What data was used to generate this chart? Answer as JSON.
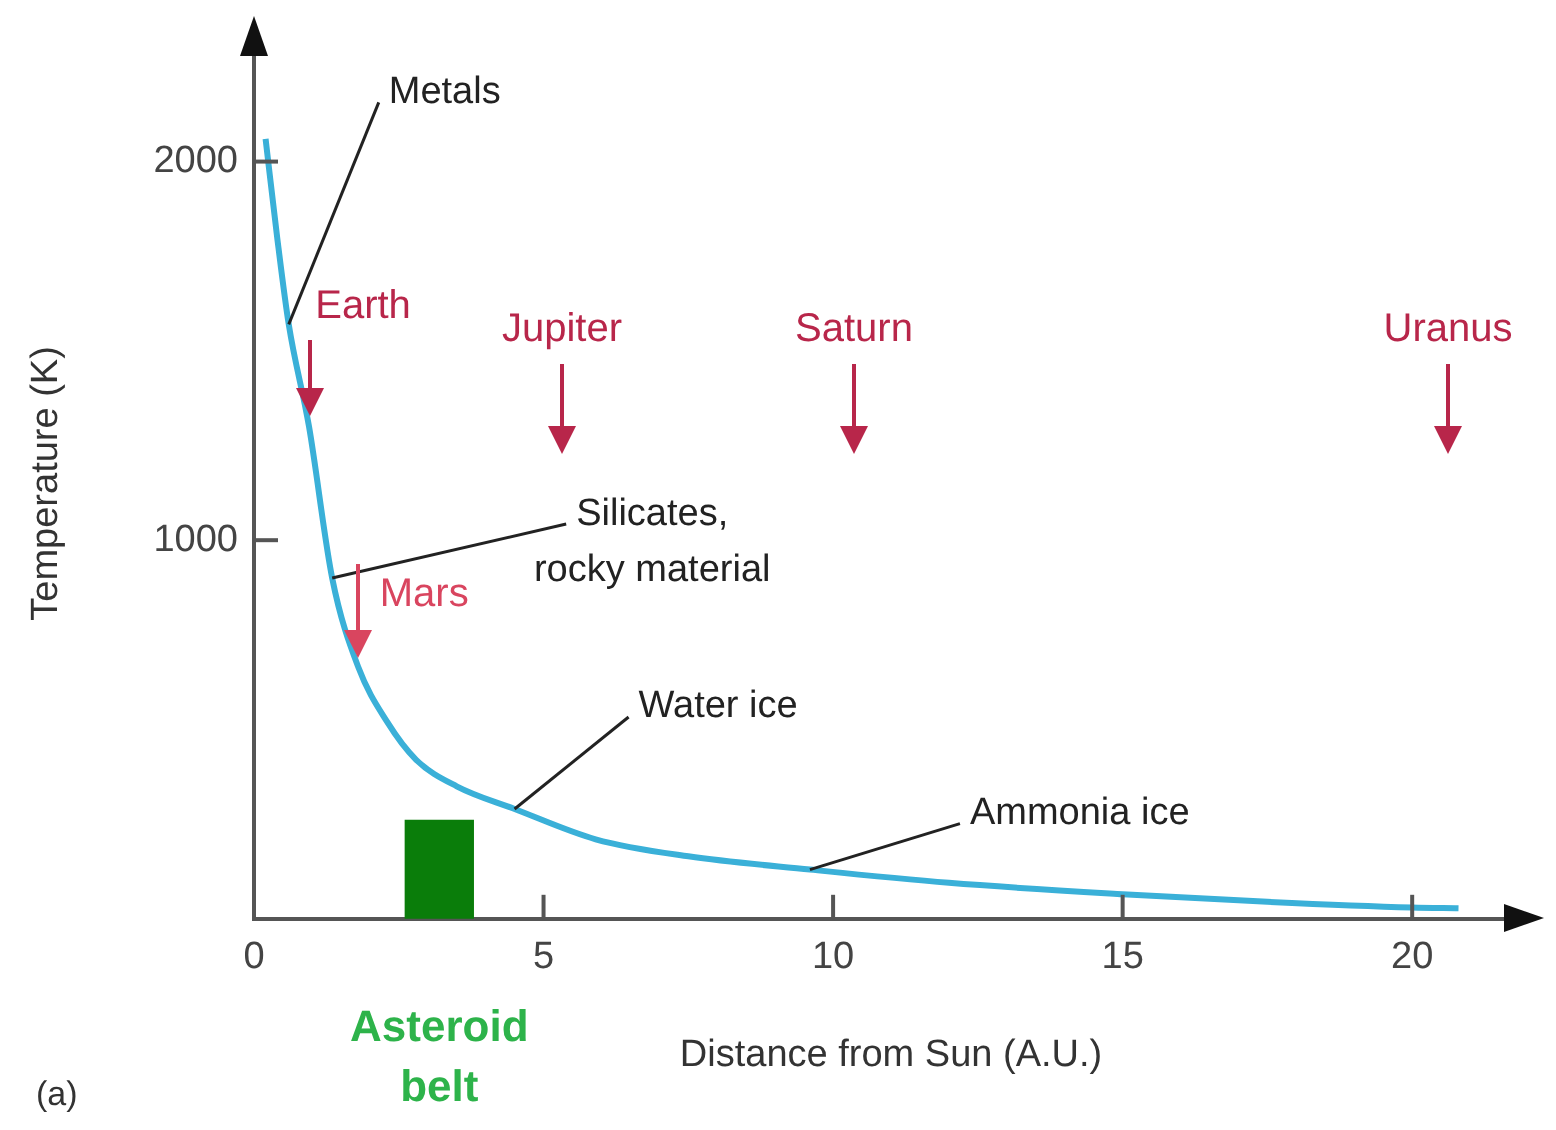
{
  "chart_data": {
    "type": "line",
    "xlabel": "Distance from Sun (A.U.)",
    "ylabel": "Temperature (K)",
    "xlim": [
      0,
      22
    ],
    "ylim": [
      0,
      2300
    ],
    "xticks": [
      0,
      5,
      10,
      15,
      20
    ],
    "yticks": [
      1000,
      2000
    ],
    "grid": false,
    "legend": false,
    "marker": "none",
    "series": [
      {
        "color": "#3ab0d8",
        "x": [
          0.2,
          0.4,
          0.6,
          0.95,
          1.35,
          1.8,
          2.3,
          2.8,
          3.5,
          4.5,
          5.9,
          7.5,
          9.6,
          12,
          15,
          17.5,
          20,
          20.8
        ],
        "values": [
          2060,
          1800,
          1570,
          1300,
          900,
          665,
          520,
          420,
          350,
          290,
          210,
          165,
          130,
          95,
          65,
          45,
          30,
          28
        ]
      },
      {
        "type": "bar",
        "name": "Asteroid belt",
        "color": "#0a7d0a",
        "x": [
          3.2
        ],
        "values": [
          260
        ]
      }
    ],
    "annotations": [
      {
        "text": "Metals",
        "x": 0.6,
        "y": 1570
      },
      {
        "text": "Silicates,\nrocky material",
        "x": 1.35,
        "y": 900
      },
      {
        "text": "Water ice",
        "x": 4.5,
        "y": 290
      },
      {
        "text": "Ammonia ice",
        "x": 9.6,
        "y": 130
      },
      {
        "text": "Earth",
        "x": 0.95,
        "y": 1300
      },
      {
        "text": "Mars",
        "x": 1.8,
        "y": 665
      },
      "Jupiter",
      "Saturn",
      "Uranus",
      "(a)"
    ]
  }
}
